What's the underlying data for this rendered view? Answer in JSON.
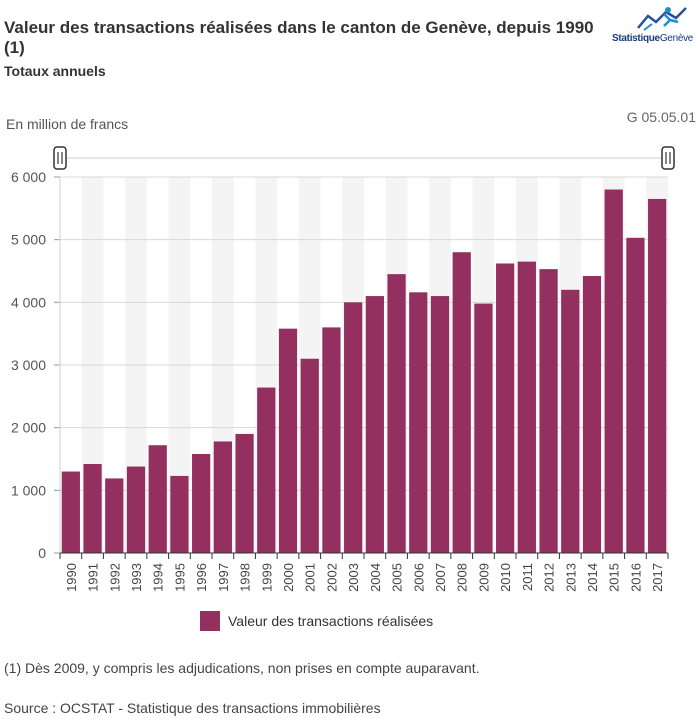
{
  "header": {
    "title": "Valeur des transactions réalisées dans le canton de Genève, depuis 1990 (1)",
    "subtitle": "Totaux annuels",
    "logo_text_a": "Statistique",
    "logo_text_b": "Genève",
    "unit": "En million de francs",
    "code": "G 05.05.01"
  },
  "colors": {
    "bar": "#93305f",
    "band": "#f4f4f4",
    "grid": "#d8d8d8"
  },
  "chart_data": {
    "type": "bar",
    "categories": [
      "1990",
      "1991",
      "1992",
      "1993",
      "1994",
      "1995",
      "1996",
      "1997",
      "1998",
      "1999",
      "2000",
      "2001",
      "2002",
      "2003",
      "2004",
      "2005",
      "2006",
      "2007",
      "2008",
      "2009",
      "2010",
      "2011",
      "2012",
      "2013",
      "2014",
      "2015",
      "2016",
      "2017"
    ],
    "series": [
      {
        "name": "Valeur des transactions réalisées",
        "values": [
          1300,
          1420,
          1190,
          1380,
          1720,
          1230,
          1580,
          1780,
          1900,
          2640,
          3580,
          3100,
          3600,
          4000,
          4100,
          4450,
          4160,
          4100,
          4800,
          3980,
          4620,
          4650,
          4530,
          4200,
          4420,
          5800,
          5030,
          5650
        ]
      }
    ],
    "yticks": [
      0,
      1000,
      2000,
      3000,
      4000,
      5000,
      6000
    ],
    "ytick_labels": [
      "0",
      "1 000",
      "2 000",
      "3 000",
      "4 000",
      "5 000",
      "6 000"
    ],
    "ylim": [
      0,
      6000
    ],
    "ylabel": "En million de francs",
    "legend": "bottom-center"
  },
  "footer": {
    "note": "(1) Dès 2009, y compris les adjudications, non prises en compte auparavant.",
    "source": "Source : OCSTAT - Statistique des transactions immobilières"
  }
}
